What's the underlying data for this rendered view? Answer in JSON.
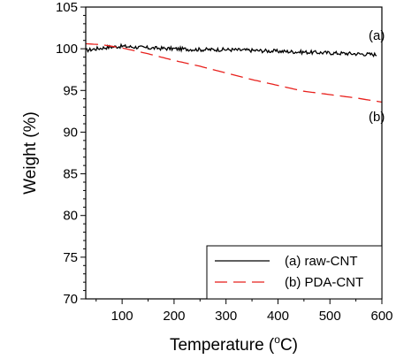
{
  "chart_data": {
    "type": "line",
    "xlabel_main": "Temperature (",
    "xlabel_sup": "o",
    "xlabel_end": "C)",
    "ylabel": "Weight (%)",
    "xlim": [
      30,
      600
    ],
    "ylim": [
      70,
      105
    ],
    "x_ticks": [
      100,
      200,
      300,
      400,
      500,
      600
    ],
    "y_ticks": [
      70,
      75,
      80,
      85,
      90,
      95,
      100,
      105
    ],
    "grid": false,
    "legend_position": "bottom-right",
    "series": [
      {
        "name": "(a) raw-CNT",
        "color": "#000000",
        "style": "solid",
        "noisy": true,
        "x": [
          30,
          50,
          75,
          100,
          125,
          150,
          200,
          250,
          300,
          350,
          400,
          450,
          500,
          550,
          590
        ],
        "y": [
          99.8,
          100.0,
          100.2,
          100.3,
          100.2,
          100.1,
          100.0,
          99.9,
          99.9,
          99.8,
          99.7,
          99.6,
          99.5,
          99.4,
          99.3
        ]
      },
      {
        "name": "(b) PDA-CNT",
        "color": "#e8201c",
        "style": "dashed",
        "noisy": false,
        "x": [
          30,
          60,
          100,
          150,
          200,
          250,
          300,
          350,
          400,
          450,
          500,
          550,
          600
        ],
        "y": [
          100.6,
          100.5,
          100.1,
          99.4,
          98.6,
          97.9,
          97.1,
          96.3,
          95.6,
          94.9,
          94.5,
          94.1,
          93.6
        ]
      }
    ],
    "annotations": [
      {
        "text": "(a)",
        "x": 595,
        "y": 101.1
      },
      {
        "text": "(b)",
        "x": 595,
        "y": 91.3
      }
    ]
  }
}
